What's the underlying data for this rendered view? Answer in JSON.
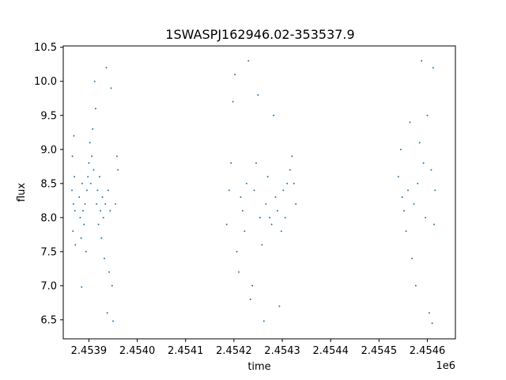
{
  "chart_data": {
    "type": "scatter",
    "title": "1SWASPJ162946.02-353537.9",
    "xlabel": "time",
    "ylabel": "flux",
    "x_offset_label": "1e6",
    "xlim": [
      2453847,
      2454658
    ],
    "ylim": [
      6.22,
      10.52
    ],
    "x_ticks": [
      2453900,
      2454000,
      2454100,
      2454200,
      2454300,
      2454400,
      2454500,
      2454600
    ],
    "x_tick_labels": [
      "2.4539",
      "2.4540",
      "2.4541",
      "2.4542",
      "2.4543",
      "2.4544",
      "2.4545",
      "2.4546"
    ],
    "y_ticks": [
      6.5,
      7.0,
      7.5,
      8.0,
      8.5,
      9.0,
      9.5,
      10.0,
      10.5
    ],
    "y_tick_labels": [
      "6.5",
      "7.0",
      "7.5",
      "8.0",
      "8.5",
      "9.0",
      "9.5",
      "10.0",
      "10.5"
    ],
    "grid": false,
    "marker_color": "#1f77b4",
    "points": [
      {
        "x": 2453865,
        "y": 8.4
      },
      {
        "x": 2453866,
        "y": 8.9
      },
      {
        "x": 2453867,
        "y": 7.8
      },
      {
        "x": 2453868,
        "y": 8.2
      },
      {
        "x": 2453869,
        "y": 9.2
      },
      {
        "x": 2453870,
        "y": 8.6
      },
      {
        "x": 2453871,
        "y": 8.1
      },
      {
        "x": 2453872,
        "y": 7.6
      },
      {
        "x": 2453880,
        "y": 8.3
      },
      {
        "x": 2453882,
        "y": 8.0
      },
      {
        "x": 2453884,
        "y": 7.7
      },
      {
        "x": 2453886,
        "y": 8.5
      },
      {
        "x": 2453888,
        "y": 8.1
      },
      {
        "x": 2453890,
        "y": 7.9
      },
      {
        "x": 2453892,
        "y": 8.2
      },
      {
        "x": 2453894,
        "y": 7.5
      },
      {
        "x": 2453885,
        "y": 6.98
      },
      {
        "x": 2453896,
        "y": 8.4
      },
      {
        "x": 2453898,
        "y": 8.6
      },
      {
        "x": 2453900,
        "y": 8.8
      },
      {
        "x": 2453902,
        "y": 9.1
      },
      {
        "x": 2453904,
        "y": 8.5
      },
      {
        "x": 2453906,
        "y": 8.9
      },
      {
        "x": 2453908,
        "y": 9.3
      },
      {
        "x": 2453910,
        "y": 8.7
      },
      {
        "x": 2453912,
        "y": 10.0
      },
      {
        "x": 2453914,
        "y": 9.6
      },
      {
        "x": 2453916,
        "y": 8.2
      },
      {
        "x": 2453918,
        "y": 8.4
      },
      {
        "x": 2453920,
        "y": 7.9
      },
      {
        "x": 2453922,
        "y": 8.6
      },
      {
        "x": 2453924,
        "y": 8.1
      },
      {
        "x": 2453926,
        "y": 7.7
      },
      {
        "x": 2453928,
        "y": 8.3
      },
      {
        "x": 2453930,
        "y": 8.0
      },
      {
        "x": 2453932,
        "y": 7.4
      },
      {
        "x": 2453934,
        "y": 8.2
      },
      {
        "x": 2453936,
        "y": 10.2
      },
      {
        "x": 2453938,
        "y": 6.6
      },
      {
        "x": 2453940,
        "y": 8.4
      },
      {
        "x": 2453942,
        "y": 7.2
      },
      {
        "x": 2453944,
        "y": 8.1
      },
      {
        "x": 2453946,
        "y": 9.9
      },
      {
        "x": 2453948,
        "y": 7.0
      },
      {
        "x": 2453950,
        "y": 6.48
      },
      {
        "x": 2453955,
        "y": 8.2
      },
      {
        "x": 2453958,
        "y": 8.9
      },
      {
        "x": 2453960,
        "y": 8.7
      },
      {
        "x": 2454185,
        "y": 7.9
      },
      {
        "x": 2454190,
        "y": 8.4
      },
      {
        "x": 2454194,
        "y": 8.8
      },
      {
        "x": 2454198,
        "y": 9.7
      },
      {
        "x": 2454202,
        "y": 10.1
      },
      {
        "x": 2454206,
        "y": 7.5
      },
      {
        "x": 2454210,
        "y": 7.2
      },
      {
        "x": 2454214,
        "y": 8.3
      },
      {
        "x": 2454218,
        "y": 8.1
      },
      {
        "x": 2454222,
        "y": 7.8
      },
      {
        "x": 2454226,
        "y": 8.5
      },
      {
        "x": 2454230,
        "y": 10.3
      },
      {
        "x": 2454234,
        "y": 6.8
      },
      {
        "x": 2454238,
        "y": 7.0
      },
      {
        "x": 2454242,
        "y": 8.4
      },
      {
        "x": 2454246,
        "y": 8.8
      },
      {
        "x": 2454250,
        "y": 9.8
      },
      {
        "x": 2454254,
        "y": 8.0
      },
      {
        "x": 2454258,
        "y": 7.6
      },
      {
        "x": 2454262,
        "y": 6.48
      },
      {
        "x": 2454266,
        "y": 8.2
      },
      {
        "x": 2454270,
        "y": 8.6
      },
      {
        "x": 2454274,
        "y": 8.0
      },
      {
        "x": 2454278,
        "y": 7.9
      },
      {
        "x": 2454282,
        "y": 9.5
      },
      {
        "x": 2454286,
        "y": 8.3
      },
      {
        "x": 2454290,
        "y": 8.1
      },
      {
        "x": 2454294,
        "y": 6.7
      },
      {
        "x": 2454298,
        "y": 7.8
      },
      {
        "x": 2454302,
        "y": 8.4
      },
      {
        "x": 2454306,
        "y": 8.0
      },
      {
        "x": 2454310,
        "y": 8.5
      },
      {
        "x": 2454316,
        "y": 8.7
      },
      {
        "x": 2454320,
        "y": 8.9
      },
      {
        "x": 2454324,
        "y": 8.5
      },
      {
        "x": 2454328,
        "y": 8.2
      },
      {
        "x": 2454540,
        "y": 8.6
      },
      {
        "x": 2454545,
        "y": 9.0
      },
      {
        "x": 2454548,
        "y": 8.3
      },
      {
        "x": 2454552,
        "y": 8.1
      },
      {
        "x": 2454556,
        "y": 7.8
      },
      {
        "x": 2454560,
        "y": 8.4
      },
      {
        "x": 2454564,
        "y": 9.4
      },
      {
        "x": 2454568,
        "y": 7.4
      },
      {
        "x": 2454572,
        "y": 8.2
      },
      {
        "x": 2454576,
        "y": 7.0
      },
      {
        "x": 2454580,
        "y": 8.5
      },
      {
        "x": 2454584,
        "y": 9.1
      },
      {
        "x": 2454588,
        "y": 10.3
      },
      {
        "x": 2454592,
        "y": 8.8
      },
      {
        "x": 2454596,
        "y": 8.0
      },
      {
        "x": 2454600,
        "y": 9.5
      },
      {
        "x": 2454604,
        "y": 6.6
      },
      {
        "x": 2454608,
        "y": 8.7
      },
      {
        "x": 2454610,
        "y": 6.45
      },
      {
        "x": 2454612,
        "y": 10.2
      },
      {
        "x": 2454614,
        "y": 7.9
      },
      {
        "x": 2454616,
        "y": 8.4
      }
    ]
  }
}
